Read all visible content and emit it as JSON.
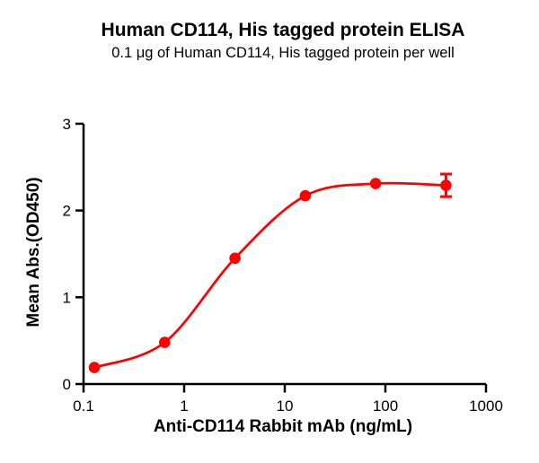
{
  "chart_data": {
    "type": "scatter",
    "title": "Human CD114, His tagged protein ELISA",
    "subtitle": "0.1 μg of Human CD114, His tagged protein per well",
    "xlabel": "Anti-CD114 Rabbit mAb (ng/mL)",
    "ylabel": "Mean Abs.(OD450)",
    "x_scale": "log10",
    "xlim": [
      0.1,
      1000
    ],
    "ylim": [
      0,
      3
    ],
    "x_tick_values": [
      0.1,
      1,
      10,
      100,
      1000
    ],
    "x_tick_labels": [
      "0.1",
      "1",
      "10",
      "100",
      "1000"
    ],
    "y_tick_values": [
      0,
      1,
      2,
      3
    ],
    "y_tick_labels": [
      "0",
      "1",
      "2",
      "3"
    ],
    "grid": false,
    "legend": "none",
    "curve_style": "sigmoidal-4PL-fit",
    "axis_color": "#000000",
    "text_color": "#000000",
    "series": [
      {
        "name": "Anti-CD114 Rabbit mAb",
        "color": "#FF0000",
        "marker": "circle",
        "x": [
          0.128,
          0.64,
          3.2,
          16,
          80,
          400
        ],
        "y": [
          0.19,
          0.48,
          1.45,
          2.17,
          2.31,
          2.29
        ],
        "y_err": [
          0,
          0,
          0,
          0,
          0,
          0.13
        ]
      }
    ]
  }
}
